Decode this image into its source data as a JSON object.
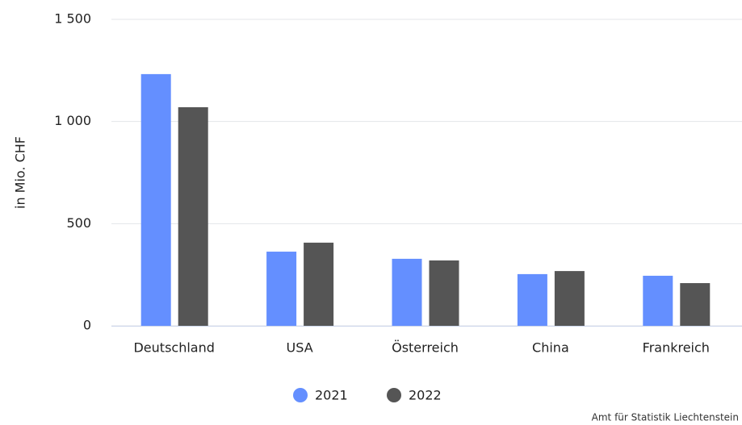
{
  "chart_data": {
    "type": "bar",
    "categories": [
      "Deutschland",
      "USA",
      "Österreich",
      "China",
      "Frankreich"
    ],
    "series": [
      {
        "name": "2021",
        "color": "#648fff",
        "values": [
          1232,
          363,
          328,
          253,
          245
        ]
      },
      {
        "name": "2022",
        "color": "#555555",
        "values": [
          1070,
          407,
          320,
          268,
          209
        ]
      }
    ],
    "ylabel": "in Mio. CHF",
    "ylim": [
      0,
      1500
    ],
    "yticks": [
      0,
      500,
      {
        "value": 1000,
        "label": "1 000"
      },
      {
        "value": 1500,
        "label": "1 500"
      }
    ],
    "grid": true,
    "legend": "bottom",
    "credit": "Amt für Statistik Liechtenstein"
  }
}
